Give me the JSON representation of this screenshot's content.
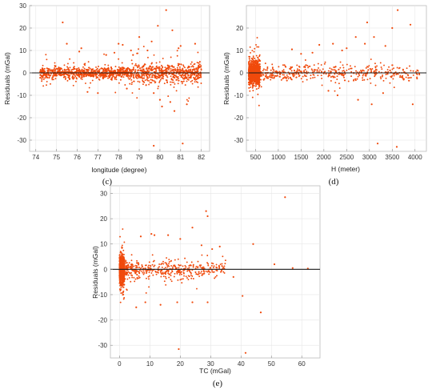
{
  "colors": {
    "points": "#f04a0c",
    "zero_line": "#1a1a1a",
    "frame": "#bdbdbd"
  },
  "chart_data": [
    {
      "panel": "(c)",
      "type": "scatter",
      "xlabel": "longitude (degree)",
      "ylabel": "Residuals (mGal)",
      "xlim": [
        73.7,
        82.4
      ],
      "ylim": [
        -35,
        30
      ],
      "xticks": [
        74,
        75,
        76,
        77,
        78,
        79,
        80,
        81,
        82
      ],
      "yticks": [
        30,
        20,
        10,
        0,
        -10,
        -20,
        -30
      ],
      "zero_line": true,
      "density": {
        "x_range": [
          74.2,
          82.0
        ],
        "core_spread": 1.8
      },
      "points": [
        [
          75.3,
          22.5
        ],
        [
          75.5,
          13
        ],
        [
          76.1,
          9.5
        ],
        [
          76.2,
          11
        ],
        [
          77.4,
          8
        ],
        [
          78.0,
          13
        ],
        [
          78.2,
          12.5
        ],
        [
          78.6,
          10
        ],
        [
          79.0,
          16
        ],
        [
          79.4,
          10
        ],
        [
          79.6,
          14
        ],
        [
          79.9,
          21
        ],
        [
          80.3,
          28
        ],
        [
          80.6,
          19
        ],
        [
          80.9,
          11
        ],
        [
          81.0,
          12
        ],
        [
          81.7,
          13
        ],
        [
          78.7,
          8
        ],
        [
          77.8,
          9
        ],
        [
          79.7,
          -9
        ],
        [
          80.0,
          -12
        ],
        [
          80.1,
          -15
        ],
        [
          80.5,
          -13
        ],
        [
          80.7,
          -17
        ],
        [
          81.3,
          -14
        ],
        [
          79.7,
          -32.5
        ],
        [
          81.1,
          -31.5
        ],
        [
          77.0,
          -9
        ],
        [
          76.5,
          -8.5
        ],
        [
          78.4,
          -7
        ]
      ]
    },
    {
      "panel": "(d)",
      "type": "scatter",
      "xlabel": "H (meter)",
      "ylabel": "Residuals (mGal)",
      "xlim": [
        300,
        4250
      ],
      "ylim": [
        -35,
        30
      ],
      "xticks": [
        500,
        1000,
        1500,
        2000,
        2500,
        3000,
        3500,
        4000
      ],
      "yticks": [
        20,
        10,
        0,
        -10,
        -20,
        -30
      ],
      "zero_line": true,
      "density": {
        "x_range": [
          350,
          4100
        ],
        "core_spread": 2.5
      },
      "points": [
        [
          3620,
          28
        ],
        [
          2950,
          22.5
        ],
        [
          3900,
          21.5
        ],
        [
          3500,
          20
        ],
        [
          2700,
          16
        ],
        [
          3100,
          16
        ],
        [
          2200,
          13
        ],
        [
          1900,
          12.5
        ],
        [
          3350,
          12
        ],
        [
          2500,
          11
        ],
        [
          1300,
          10.5
        ],
        [
          2400,
          10
        ],
        [
          2900,
          13
        ],
        [
          2750,
          -12
        ],
        [
          3050,
          -14
        ],
        [
          3950,
          -14
        ],
        [
          2300,
          -10
        ],
        [
          3300,
          -9
        ],
        [
          3180,
          -31.5
        ],
        [
          3600,
          -33
        ],
        [
          1500,
          8.5
        ],
        [
          1750,
          9
        ],
        [
          2100,
          -8
        ],
        [
          3750,
          -3
        ]
      ]
    },
    {
      "panel": "(e)",
      "type": "scatter",
      "xlabel": "TC (mGal)",
      "ylabel": "Residuals (mGal)",
      "xlim": [
        -3,
        66
      ],
      "ylim": [
        -35,
        33
      ],
      "xticks": [
        0,
        10,
        20,
        30,
        40,
        50,
        60
      ],
      "yticks": [
        30,
        20,
        10,
        0,
        -10,
        -20,
        -30
      ],
      "zero_line": true,
      "density": {
        "x_range": [
          0,
          35
        ],
        "core_spread": 2.5
      },
      "points": [
        [
          54.5,
          28.5
        ],
        [
          28.5,
          23
        ],
        [
          29,
          21
        ],
        [
          24,
          16.5
        ],
        [
          10.5,
          14
        ],
        [
          11.5,
          13.5
        ],
        [
          7,
          13
        ],
        [
          16,
          13.5
        ],
        [
          20,
          12
        ],
        [
          27,
          9.5
        ],
        [
          33,
          9
        ],
        [
          30.5,
          8
        ],
        [
          44,
          10
        ],
        [
          8.5,
          -13
        ],
        [
          13.5,
          -14
        ],
        [
          19,
          -13
        ],
        [
          24,
          -13
        ],
        [
          29,
          -13
        ],
        [
          5.5,
          -15
        ],
        [
          40.5,
          -10.5
        ],
        [
          46.5,
          -17
        ],
        [
          19.5,
          -31.5
        ],
        [
          41.5,
          -33
        ],
        [
          51,
          2
        ],
        [
          57,
          0.5
        ],
        [
          62,
          0.3
        ],
        [
          37.5,
          -3
        ]
      ]
    }
  ]
}
